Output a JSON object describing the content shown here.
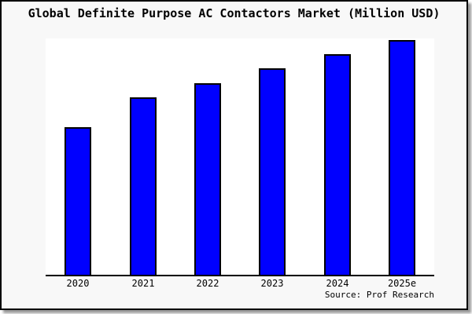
{
  "window": {
    "background": "#f8f8f8",
    "plot_background": "#ffffff",
    "frame_border_color": "#000000",
    "shadow_color": "#999999"
  },
  "source": "Source: Prof Research",
  "chart_data": {
    "type": "bar",
    "title": "Global Definite Purpose AC Contactors Market (Million USD)",
    "categories": [
      "2020",
      "2021",
      "2022",
      "2023",
      "2024",
      "2025e"
    ],
    "values": [
      188,
      226,
      244,
      263,
      281,
      299
    ],
    "xlabel": "",
    "ylabel": "",
    "ylim": [
      0,
      301
    ],
    "grid": false,
    "legend": "none",
    "y_axis_labels_visible": false,
    "bar_color": "#0000ff",
    "bar_border_color": "#000000",
    "axis_line_color": "#000000",
    "text_color": "#000000"
  }
}
